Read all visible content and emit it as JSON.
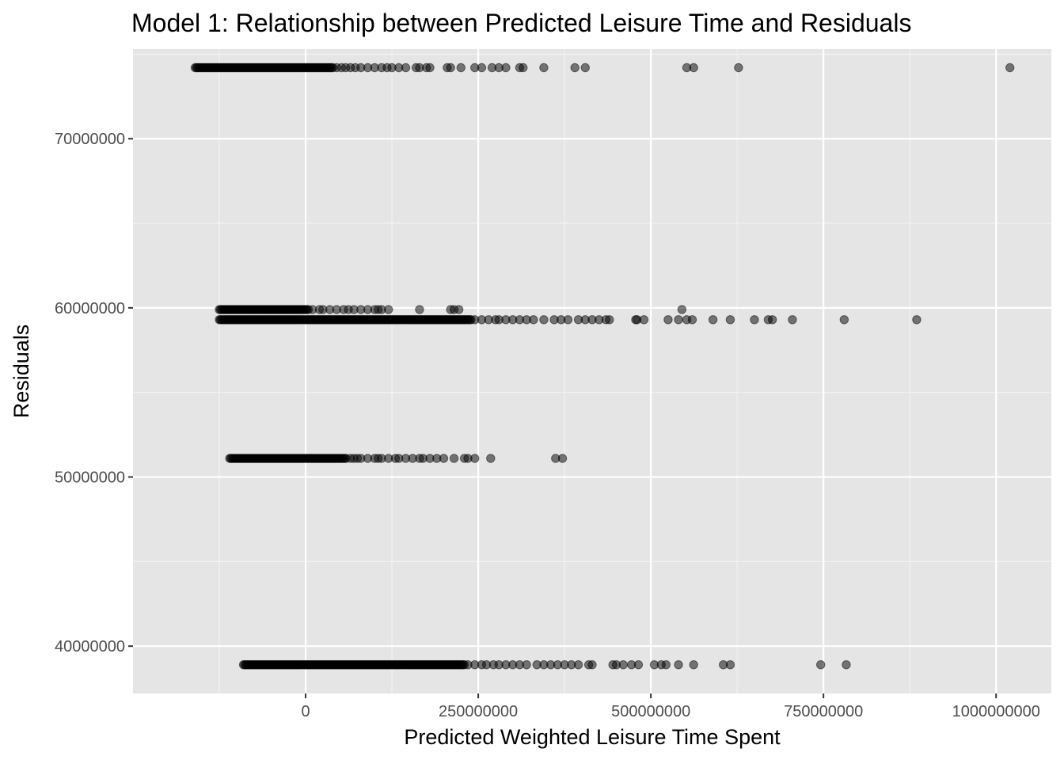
{
  "chart_data": {
    "type": "scatter",
    "title": "Model 1: Relationship between Predicted Leisure Time and Residuals",
    "xlabel": "Predicted Weighted Leisure Time Spent",
    "ylabel": "Residuals",
    "xlim": [
      -250000000,
      1080000000
    ],
    "ylim": [
      37200000,
      75300000
    ],
    "x_ticks": [
      0,
      250000000,
      500000000,
      750000000,
      1000000000
    ],
    "x_tick_labels": [
      "0",
      "250000000",
      "500000000",
      "750000000",
      "1000000000"
    ],
    "y_ticks": [
      40000000,
      50000000,
      60000000,
      70000000
    ],
    "y_tick_labels": [
      "40000000",
      "50000000",
      "60000000",
      "70000000"
    ],
    "grid": true,
    "point_color": "#000000",
    "point_alpha": 0.5,
    "panel_background": "#e5e5e5",
    "bands": [
      {
        "y": 74200000,
        "dense_from": -160000000,
        "dense_to": 40000000,
        "x": [
          45000000,
          52000000,
          58000000,
          65000000,
          72000000,
          80000000,
          90000000,
          100000000,
          110000000,
          118000000,
          125000000,
          135000000,
          145000000,
          160000000,
          165000000,
          175000000,
          180000000,
          205000000,
          210000000,
          225000000,
          245000000,
          255000000,
          270000000,
          280000000,
          290000000,
          310000000,
          315000000,
          345000000,
          390000000,
          405000000,
          552000000,
          562000000,
          627000000,
          1020000000
        ]
      },
      {
        "y": 59900000,
        "dense_from": -125000000,
        "dense_to": 5000000,
        "x": [
          10000000,
          20000000,
          25000000,
          35000000,
          45000000,
          55000000,
          62000000,
          70000000,
          80000000,
          90000000,
          100000000,
          105000000,
          110000000,
          120000000,
          165000000,
          210000000,
          215000000,
          222000000,
          545000000
        ]
      },
      {
        "y": 59300000,
        "dense_from": -125000000,
        "dense_to": 240000000,
        "x": [
          245000000,
          255000000,
          265000000,
          275000000,
          280000000,
          290000000,
          300000000,
          310000000,
          320000000,
          330000000,
          345000000,
          360000000,
          370000000,
          380000000,
          395000000,
          405000000,
          415000000,
          425000000,
          435000000,
          440000000,
          478000000,
          480000000,
          490000000,
          525000000,
          540000000,
          552000000,
          560000000,
          590000000,
          615000000,
          650000000,
          670000000,
          676000000,
          705000000,
          780000000,
          885000000
        ]
      },
      {
        "y": 51100000,
        "dense_from": -110000000,
        "dense_to": 60000000,
        "x": [
          65000000,
          70000000,
          75000000,
          80000000,
          90000000,
          100000000,
          105000000,
          110000000,
          120000000,
          130000000,
          135000000,
          145000000,
          155000000,
          165000000,
          170000000,
          180000000,
          190000000,
          200000000,
          215000000,
          230000000,
          235000000,
          245000000,
          268000000,
          362000000,
          372000000
        ]
      },
      {
        "y": 38900000,
        "dense_from": -90000000,
        "dense_to": 230000000,
        "x": [
          235000000,
          245000000,
          255000000,
          262000000,
          272000000,
          280000000,
          290000000,
          300000000,
          310000000,
          320000000,
          335000000,
          345000000,
          355000000,
          365000000,
          375000000,
          385000000,
          395000000,
          410000000,
          415000000,
          445000000,
          450000000,
          460000000,
          472000000,
          482000000,
          505000000,
          515000000,
          522000000,
          540000000,
          562000000,
          605000000,
          615000000,
          746000000,
          783000000
        ]
      }
    ]
  }
}
